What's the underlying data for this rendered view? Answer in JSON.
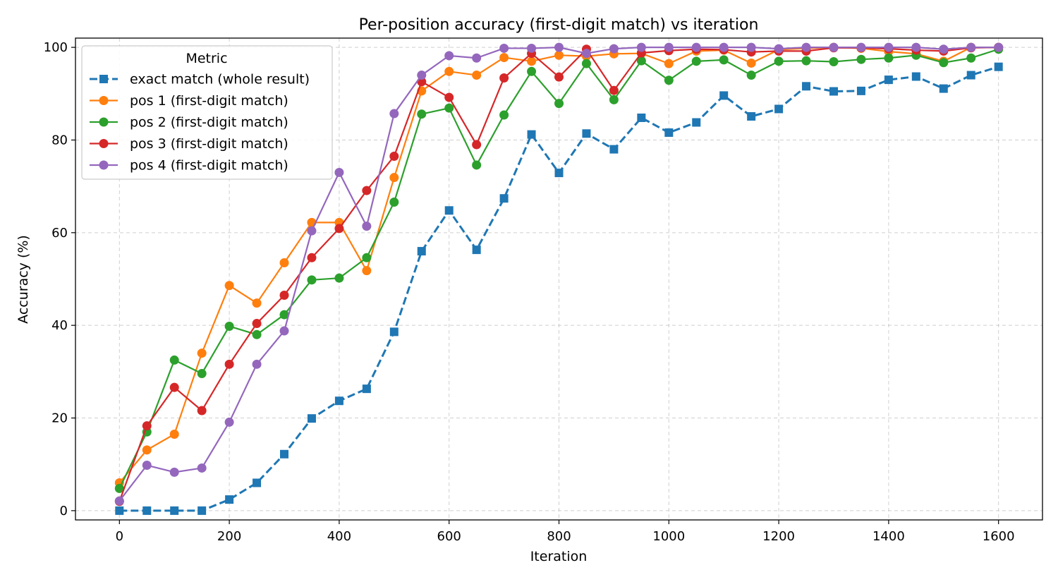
{
  "chart_data": {
    "type": "line",
    "title": "Per-position accuracy (first-digit match) vs iteration",
    "xlabel": "Iteration",
    "ylabel": "Accuracy (%)",
    "xlim": [
      -80,
      1680
    ],
    "ylim": [
      -2,
      102
    ],
    "xticks": [
      0,
      200,
      400,
      600,
      800,
      1000,
      1200,
      1400,
      1600
    ],
    "yticks": [
      0,
      20,
      40,
      60,
      80,
      100
    ],
    "grid": true,
    "legend": {
      "title": "Metric",
      "placement": "top-left"
    },
    "x": [
      0,
      50,
      100,
      150,
      200,
      250,
      300,
      350,
      400,
      450,
      500,
      550,
      600,
      650,
      700,
      750,
      800,
      850,
      900,
      950,
      1000,
      1050,
      1100,
      1150,
      1200,
      1250,
      1300,
      1350,
      1400,
      1450,
      1500,
      1550,
      1600
    ],
    "series": [
      {
        "name": "exact match (whole result)",
        "color": "#1f77b4",
        "marker": "square",
        "linestyle": "dashed",
        "values": [
          0,
          0,
          0,
          0,
          2.4,
          6.0,
          12.2,
          19.9,
          23.7,
          26.3,
          38.6,
          56.0,
          64.8,
          56.3,
          67.4,
          81.2,
          72.9,
          81.4,
          78.0,
          84.8,
          81.6,
          83.8,
          89.6,
          85.1,
          86.7,
          91.6,
          90.5,
          90.6,
          93.0,
          93.7,
          91.1,
          94.0,
          95.8
        ]
      },
      {
        "name": "pos 1 (first-digit match)",
        "color": "#ff7f0e",
        "marker": "circle",
        "linestyle": "solid",
        "values": [
          6.0,
          13.1,
          16.5,
          34.0,
          48.6,
          44.8,
          53.5,
          62.2,
          62.2,
          51.8,
          71.9,
          90.6,
          94.8,
          94.0,
          97.8,
          97.0,
          98.3,
          98.1,
          98.6,
          98.7,
          96.5,
          99.2,
          99.4,
          96.6,
          99.5,
          99.8,
          100.0,
          99.8,
          99.1,
          98.6,
          97.0,
          100.0,
          100.0
        ]
      },
      {
        "name": "pos 2 (first-digit match)",
        "color": "#2ca02c",
        "marker": "circle",
        "linestyle": "solid",
        "values": [
          4.8,
          17.0,
          32.5,
          29.6,
          39.8,
          38.0,
          42.3,
          49.8,
          50.2,
          54.6,
          66.6,
          85.6,
          86.9,
          74.6,
          85.4,
          94.8,
          87.9,
          96.5,
          88.7,
          97.1,
          92.9,
          97.0,
          97.3,
          94.0,
          97.0,
          97.1,
          96.9,
          97.4,
          97.7,
          98.3,
          96.7,
          97.7,
          99.6
        ]
      },
      {
        "name": "pos 3 (first-digit match)",
        "color": "#d62728",
        "marker": "circle",
        "linestyle": "solid",
        "values": [
          2.0,
          18.3,
          26.6,
          21.6,
          31.6,
          40.4,
          46.5,
          54.6,
          60.9,
          69.1,
          76.5,
          92.6,
          89.2,
          79.0,
          93.4,
          98.7,
          93.6,
          99.6,
          90.7,
          98.8,
          99.3,
          99.6,
          99.5,
          99.0,
          99.2,
          99.2,
          99.9,
          99.9,
          99.7,
          99.4,
          99.2,
          99.9,
          100.0
        ]
      },
      {
        "name": "pos 4 (first-digit match)",
        "color": "#9467bd",
        "marker": "circle",
        "linestyle": "solid",
        "values": [
          2.1,
          9.8,
          8.3,
          9.2,
          19.1,
          31.6,
          38.8,
          60.4,
          73.0,
          61.4,
          85.7,
          94.0,
          98.2,
          97.7,
          99.8,
          99.8,
          100.0,
          98.7,
          99.7,
          100.0,
          100.0,
          100.0,
          100.0,
          100.0,
          99.7,
          100.0,
          100.0,
          100.0,
          100.0,
          100.0,
          99.6,
          100.0,
          100.0
        ]
      }
    ]
  }
}
